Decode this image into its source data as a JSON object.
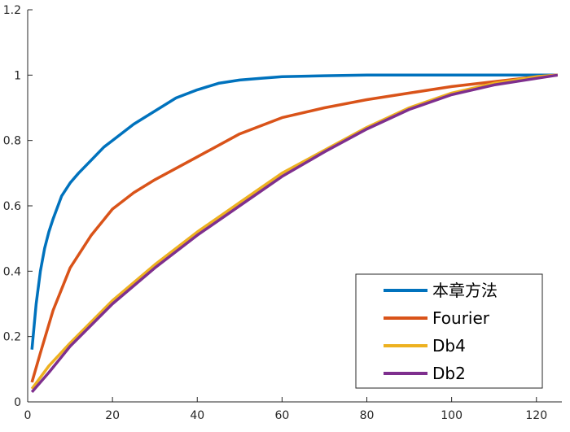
{
  "chart_data": {
    "type": "line",
    "title": "",
    "xlabel": "",
    "ylabel": "",
    "xlim": [
      0,
      126
    ],
    "ylim": [
      0,
      1.2
    ],
    "xticks": [
      0,
      20,
      40,
      60,
      80,
      100,
      120
    ],
    "yticks": [
      0,
      0.2,
      0.4,
      0.6,
      0.8,
      1,
      1.2
    ],
    "xtick_labels": [
      "0",
      "20",
      "40",
      "60",
      "80",
      "100",
      "120"
    ],
    "ytick_labels": [
      "0",
      "0.2",
      "0.4",
      "0.6",
      "0.8",
      "1",
      "1.2"
    ],
    "grid": false,
    "legend_position": "bottom-right",
    "series": [
      {
        "name": "本章方法",
        "color": "#0072BD",
        "x": [
          1,
          2,
          3,
          4,
          5,
          6,
          8,
          10,
          12,
          15,
          18,
          20,
          25,
          30,
          35,
          40,
          45,
          50,
          55,
          60,
          70,
          80,
          90,
          100,
          110,
          120,
          125
        ],
        "y": [
          0.16,
          0.3,
          0.4,
          0.47,
          0.52,
          0.56,
          0.63,
          0.67,
          0.7,
          0.74,
          0.78,
          0.8,
          0.85,
          0.89,
          0.93,
          0.955,
          0.975,
          0.985,
          0.99,
          0.995,
          0.998,
          1.0,
          1.0,
          1.0,
          1.0,
          1.0,
          1.0
        ]
      },
      {
        "name": "Fourier",
        "color": "#D95319",
        "x": [
          1,
          3,
          6,
          10,
          15,
          20,
          25,
          30,
          40,
          50,
          60,
          70,
          80,
          90,
          100,
          110,
          120,
          125
        ],
        "y": [
          0.06,
          0.15,
          0.28,
          0.41,
          0.51,
          0.59,
          0.64,
          0.68,
          0.75,
          0.82,
          0.87,
          0.9,
          0.925,
          0.945,
          0.965,
          0.98,
          0.995,
          1.0
        ]
      },
      {
        "name": "Db4",
        "color": "#EDB120",
        "x": [
          1,
          5,
          10,
          20,
          30,
          40,
          50,
          60,
          70,
          80,
          90,
          100,
          110,
          120,
          125
        ],
        "y": [
          0.04,
          0.11,
          0.18,
          0.31,
          0.42,
          0.52,
          0.61,
          0.7,
          0.77,
          0.84,
          0.9,
          0.945,
          0.975,
          0.995,
          1.0
        ]
      },
      {
        "name": "Db2",
        "color": "#7E2F8E",
        "x": [
          1,
          5,
          10,
          20,
          30,
          40,
          50,
          60,
          70,
          80,
          90,
          100,
          110,
          120,
          125
        ],
        "y": [
          0.03,
          0.09,
          0.17,
          0.3,
          0.41,
          0.51,
          0.6,
          0.69,
          0.765,
          0.835,
          0.895,
          0.94,
          0.97,
          0.99,
          1.0
        ]
      }
    ]
  }
}
